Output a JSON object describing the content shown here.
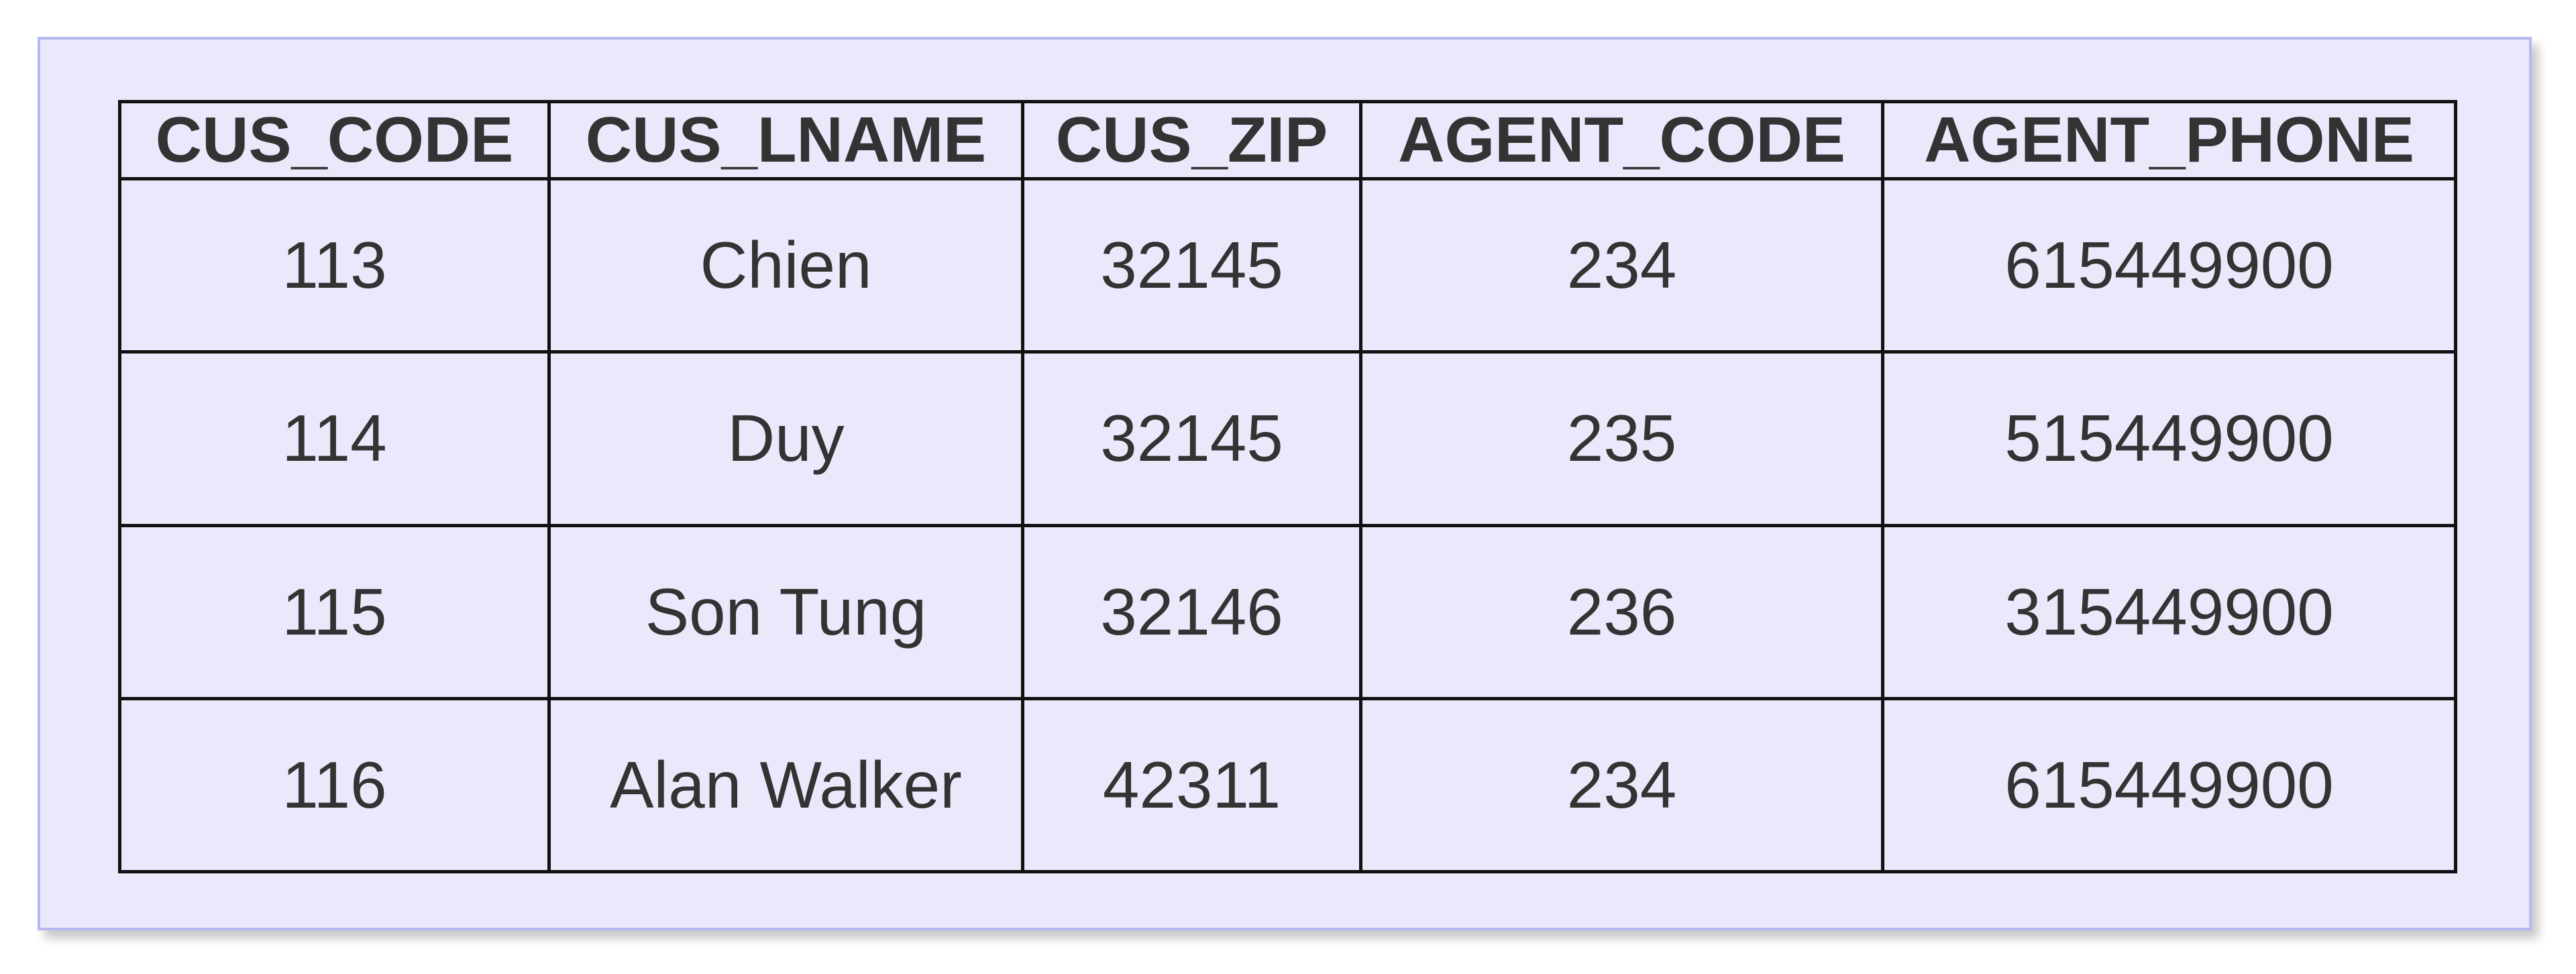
{
  "table": {
    "columns": [
      "CUS_CODE",
      "CUS_LNAME",
      "CUS_ZIP",
      "AGENT_CODE",
      "AGENT_PHONE"
    ],
    "rows": [
      [
        "113",
        "Chien",
        "32145",
        "234",
        "615449900"
      ],
      [
        "114",
        "Duy",
        "32145",
        "235",
        "515449900"
      ],
      [
        "115",
        "Son Tung",
        "32146",
        "236",
        "315449900"
      ],
      [
        "116",
        "Alan Walker",
        "42311",
        "234",
        "615449900"
      ]
    ]
  },
  "colors": {
    "panel_background": "#e9e9fb",
    "panel_border": "#b6b7f2",
    "grid_lines": "#111111",
    "text": "#333333"
  }
}
